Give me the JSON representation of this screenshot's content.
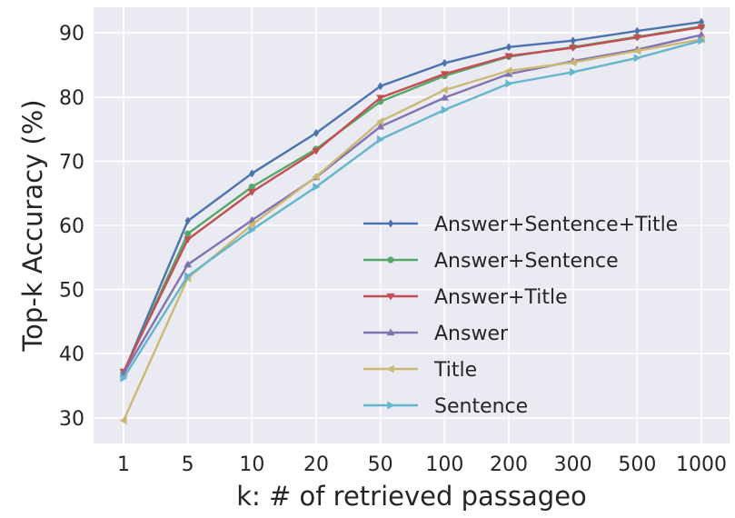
{
  "chart_data": {
    "type": "line",
    "title": "",
    "xlabel": "k: # of retrieved passageo",
    "ylabel": "Top-k Accuracy (%)",
    "categories": [
      "1",
      "5",
      "10",
      "20",
      "50",
      "100",
      "200",
      "300",
      "500",
      "1000"
    ],
    "ylim": [
      26,
      94
    ],
    "yticks": [
      30,
      40,
      50,
      60,
      70,
      80,
      90
    ],
    "grid": true,
    "legend_position": "center-right",
    "series": [
      {
        "name": "Answer+Sentence+Title",
        "color": "#4c72b0",
        "marker": "diamond",
        "values": [
          37.0,
          60.7,
          68.1,
          74.4,
          81.7,
          85.3,
          87.8,
          88.8,
          90.3,
          91.7
        ]
      },
      {
        "name": "Answer+Sentence",
        "color": "#55a868",
        "marker": "circle",
        "values": [
          37.0,
          58.7,
          66.0,
          71.9,
          79.3,
          83.3,
          86.3,
          87.8,
          89.4,
          91.0
        ]
      },
      {
        "name": "Answer+Title",
        "color": "#c44e52",
        "marker": "triangle-down",
        "values": [
          37.2,
          57.8,
          65.2,
          71.6,
          79.9,
          83.6,
          86.4,
          87.7,
          89.3,
          90.9
        ]
      },
      {
        "name": "Answer",
        "color": "#8172b2",
        "marker": "triangle-up",
        "values": [
          36.9,
          53.9,
          60.8,
          67.5,
          75.4,
          79.9,
          83.6,
          85.6,
          87.4,
          89.7
        ]
      },
      {
        "name": "Title",
        "color": "#ccb974",
        "marker": "tri-left",
        "values": [
          29.6,
          51.8,
          60.1,
          67.6,
          76.2,
          81.1,
          84.1,
          85.4,
          87.2,
          89.0
        ]
      },
      {
        "name": "Sentence",
        "color": "#64b5cd",
        "marker": "tri-right",
        "values": [
          36.2,
          52.1,
          59.3,
          66.0,
          73.4,
          78.0,
          82.1,
          83.9,
          86.1,
          88.8
        ]
      }
    ]
  }
}
